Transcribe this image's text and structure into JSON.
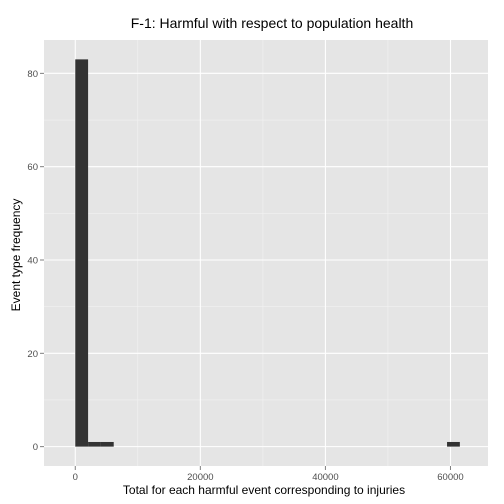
{
  "chart_data": {
    "type": "bar",
    "subtype": "histogram",
    "title": "F-1: Harmful with respect to population health",
    "xlabel": "Total for each harmful event corresponding to injuries",
    "ylabel": "Event type frequency",
    "xlim": [
      -5000,
      66000
    ],
    "ylim": [
      -4.15,
      87.15
    ],
    "x_ticks": [
      0,
      20000,
      40000,
      60000
    ],
    "x_tick_labels": [
      "0",
      "20000",
      "40000",
      "60000"
    ],
    "y_ticks": [
      0,
      20,
      40,
      60,
      80
    ],
    "y_tick_labels": [
      "0",
      "20",
      "40",
      "60",
      "80"
    ],
    "bin_width": 2050,
    "bins": [
      {
        "x_start": 0,
        "x_end": 2050,
        "count": 83
      },
      {
        "x_start": 2050,
        "x_end": 4100,
        "count": 1
      },
      {
        "x_start": 4100,
        "x_end": 6150,
        "count": 1
      },
      {
        "x_start": 59450,
        "x_end": 61500,
        "count": 1
      }
    ],
    "grid": true,
    "legend": "none",
    "colors": {
      "panel_background": "#e5e5e5",
      "grid_major": "#ffffff",
      "grid_minor": "#f2f2f2",
      "bar_fill": "#333333"
    }
  }
}
